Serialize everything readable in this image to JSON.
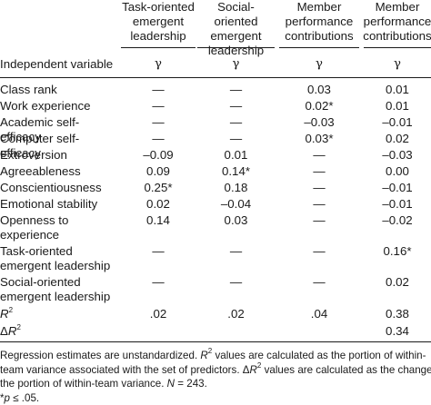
{
  "columns": [
    "Task-oriented emergent leadership",
    "Social-oriented emergent leadership",
    "Member performance contributions",
    "Member performance contributions"
  ],
  "columns_lines": [
    [
      "Task-oriented",
      "emergent",
      "leadership"
    ],
    [
      "Social-oriented",
      "emergent",
      "leadership"
    ],
    [
      "Member",
      "performance",
      "contributions"
    ],
    [
      "Member",
      "performance",
      "contributions"
    ]
  ],
  "subheader": {
    "label": "Independent variable",
    "symbol": "γ"
  },
  "rows": [
    {
      "label": [
        "Class rank"
      ],
      "values": [
        "—",
        "—",
        "0.03",
        "0.01"
      ]
    },
    {
      "label": [
        "Work experience"
      ],
      "values": [
        "—",
        "—",
        "0.02*",
        "0.01"
      ]
    },
    {
      "label": [
        "Academic self-efficacy"
      ],
      "values": [
        "—",
        "—",
        "–0.03",
        "–0.01"
      ]
    },
    {
      "label": [
        "Computer self-efficacy"
      ],
      "values": [
        "—",
        "—",
        "0.03*",
        "0.02"
      ]
    },
    {
      "label": [
        "Extroversion"
      ],
      "values": [
        "–0.09",
        "0.01",
        "—",
        "–0.03"
      ]
    },
    {
      "label": [
        "Agreeableness"
      ],
      "values": [
        "0.09",
        "0.14*",
        "—",
        "0.00"
      ]
    },
    {
      "label": [
        "Conscientiousness"
      ],
      "values": [
        "0.25*",
        "0.18",
        "—",
        "–0.01"
      ]
    },
    {
      "label": [
        "Emotional stability"
      ],
      "values": [
        "0.02",
        "–0.04",
        "—",
        "–0.01"
      ]
    },
    {
      "label": [
        "Openness to",
        "experience"
      ],
      "values": [
        "0.14",
        "0.03",
        "—",
        "–0.02"
      ]
    },
    {
      "label": [
        "Task-oriented",
        "emergent leadership"
      ],
      "values": [
        "—",
        "—",
        "—",
        "0.16*"
      ]
    },
    {
      "label": [
        "Social-oriented",
        "emergent leadership"
      ],
      "values": [
        "—",
        "—",
        "—",
        "0.02"
      ]
    },
    {
      "label": [
        "R",
        "2"
      ],
      "values": [
        ".02",
        ".02",
        ".04",
        "0.38"
      ]
    },
    {
      "label": [
        "ΔR",
        "2"
      ],
      "values": [
        "",
        "",
        "",
        "0.34"
      ]
    }
  ],
  "notes": {
    "line1_a": "Regression estimates are unstandardized. ",
    "line1_r": "R",
    "line1_sup": "2",
    "line1_b": " values are calculated as the portion of within-",
    "line2_a": "team variance associated with the set of predictors. Δ",
    "line2_r": "R",
    "line2_sup": "2",
    "line2_b": " values are calculated as the change in",
    "line3_a": "the portion of within-team variance. ",
    "line3_n": "N",
    "line3_b": " = 243.",
    "line4_star": "*",
    "line4_p": "p",
    "line4_b": " ≤ .05."
  }
}
